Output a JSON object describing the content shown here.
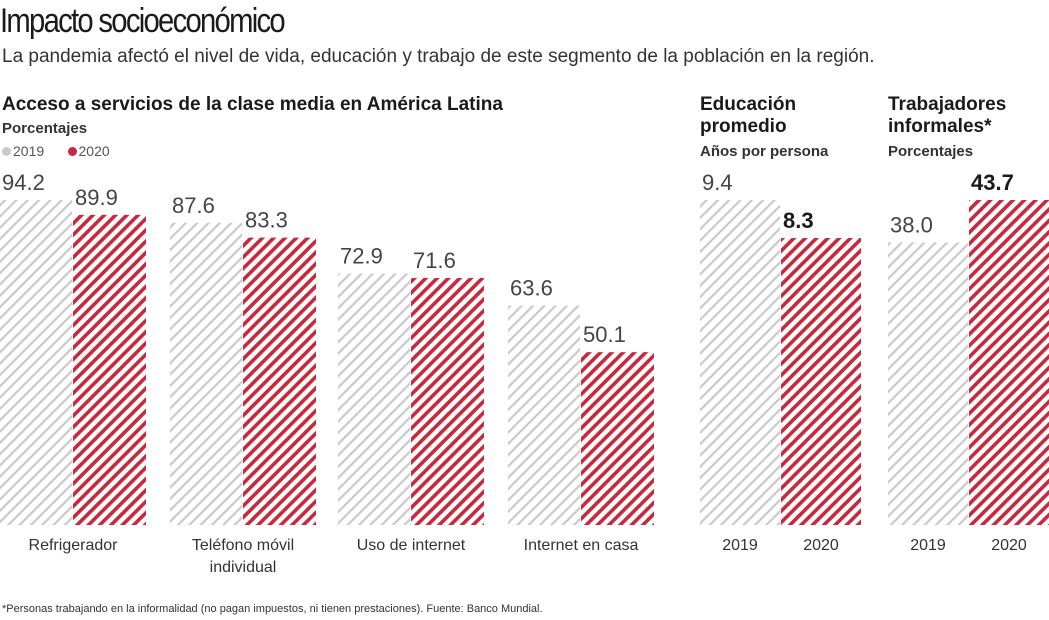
{
  "header": {
    "title": "Impacto socioeconómico",
    "subtitle": "La pandemia afectó el nivel de vida, educación y trabajo de este segmento de la población en la región."
  },
  "footnote": "*Personas trabajando en la informalidad (no pagan impuestos, ni tienen prestaciones). Fuente: Banco Mundial.",
  "colors": {
    "2019": "#c9c9c9",
    "2020": "#c8283c"
  },
  "legend": [
    {
      "label": "2019",
      "color": "#c9c9c9"
    },
    {
      "label": "2020",
      "color": "#c8283c"
    }
  ],
  "chart_data": [
    {
      "type": "bar",
      "title": "Acceso a servicios de la clase media en América Latina",
      "ylabel": "Porcentajes",
      "categories": [
        "Refrigerador",
        "Teléfono móvil\nindividual",
        "Uso de internet",
        "Internet en casa"
      ],
      "series": [
        {
          "name": "2019",
          "values": [
            94.2,
            87.6,
            72.9,
            63.6
          ]
        },
        {
          "name": "2020",
          "values": [
            89.9,
            83.3,
            71.6,
            50.1
          ]
        }
      ],
      "ylim": [
        0,
        94.2
      ],
      "grid": false,
      "legend": "top-left",
      "pattern": "diagonal-hatch"
    },
    {
      "type": "bar",
      "title": "Educación promedio",
      "ylabel": "Años por persona",
      "categories": [
        "2019",
        "2020"
      ],
      "values": [
        9.4,
        8.3
      ],
      "ylim": [
        0,
        9.4
      ],
      "bold_series": "2020",
      "pattern": "diagonal-hatch"
    },
    {
      "type": "bar",
      "title": "Trabajadores informales*",
      "ylabel": "Porcentajes",
      "categories": [
        "2019",
        "2020"
      ],
      "values": [
        38.0,
        43.7
      ],
      "ylim": [
        0,
        43.7
      ],
      "bold_series": "2020",
      "pattern": "diagonal-hatch"
    }
  ]
}
